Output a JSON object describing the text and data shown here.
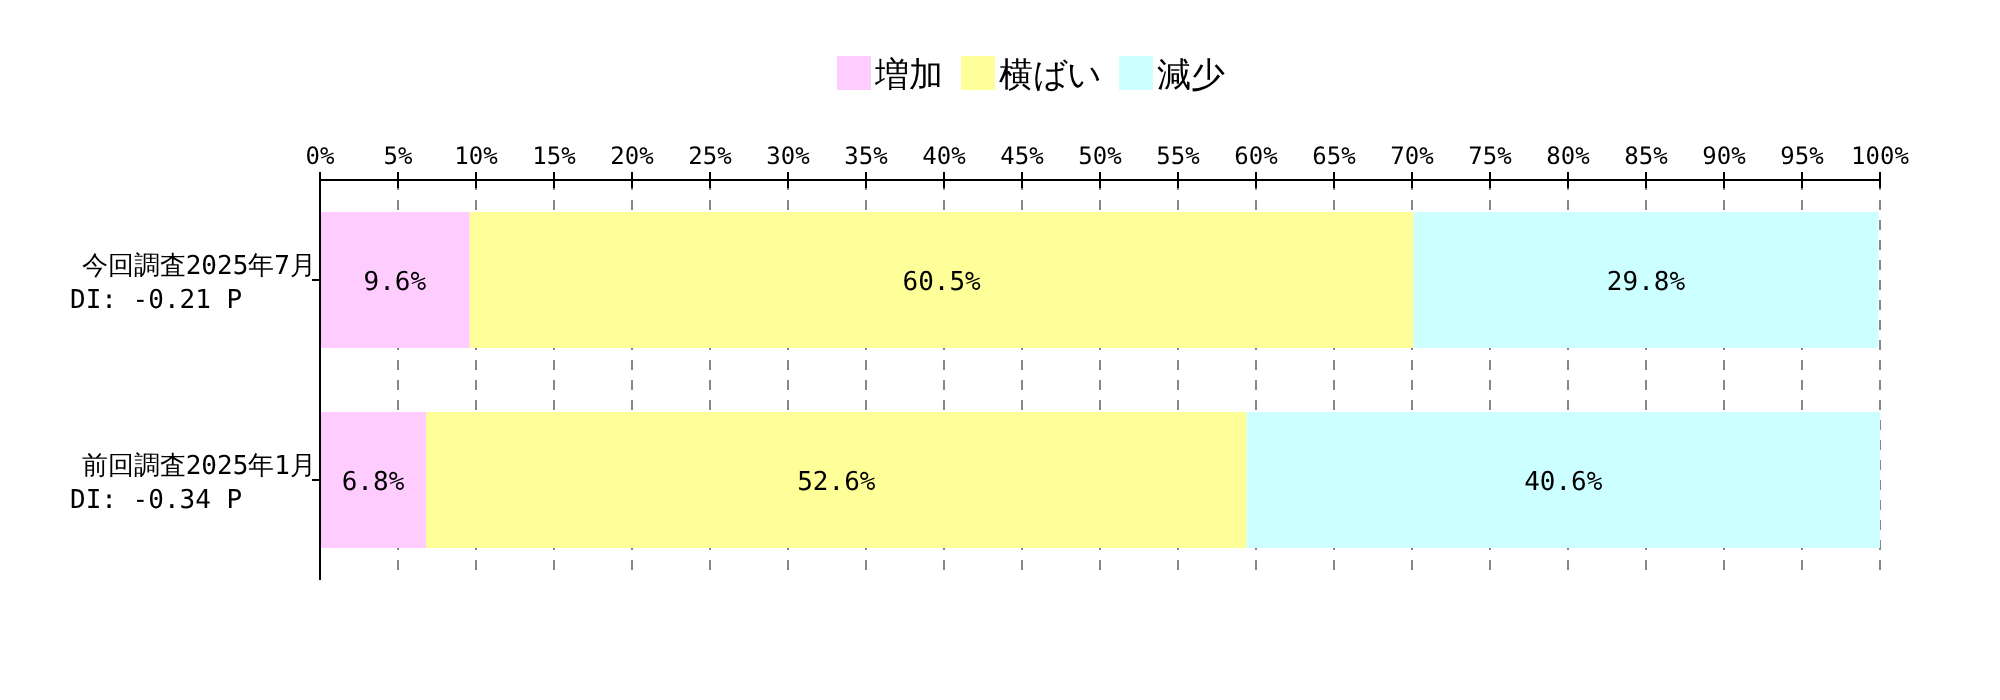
{
  "chart_data": {
    "type": "bar",
    "orientation": "horizontal",
    "stacked": true,
    "categories": [
      "今回調査2025年7月\nDI: -0.21 P",
      "前回調査2025年1月\nDI: -0.34 P"
    ],
    "series": [
      {
        "name": "増加",
        "color": "#ffccff",
        "values": [
          9.6,
          6.8
        ],
        "value_labels": [
          "9.6%",
          "6.8%"
        ]
      },
      {
        "name": "横ばい",
        "color": "#ffff99",
        "values": [
          60.5,
          52.6
        ],
        "value_labels": [
          "60.5%",
          "52.6%"
        ]
      },
      {
        "name": "減少",
        "color": "#ccffff",
        "values": [
          29.8,
          40.6
        ],
        "value_labels": [
          "29.8%",
          "40.6%"
        ]
      }
    ],
    "xlim": [
      0,
      100
    ],
    "xticks": [
      {
        "value": 0,
        "label": "0%"
      },
      {
        "value": 5,
        "label": "5%"
      },
      {
        "value": 10,
        "label": "10%"
      },
      {
        "value": 15,
        "label": "15%"
      },
      {
        "value": 20,
        "label": "20%"
      },
      {
        "value": 25,
        "label": "25%"
      },
      {
        "value": 30,
        "label": "30%"
      },
      {
        "value": 35,
        "label": "35%"
      },
      {
        "value": 40,
        "label": "40%"
      },
      {
        "value": 45,
        "label": "45%"
      },
      {
        "value": 50,
        "label": "50%"
      },
      {
        "value": 55,
        "label": "55%"
      },
      {
        "value": 60,
        "label": "60%"
      },
      {
        "value": 65,
        "label": "65%"
      },
      {
        "value": 70,
        "label": "70%"
      },
      {
        "value": 75,
        "label": "75%"
      },
      {
        "value": 80,
        "label": "80%"
      },
      {
        "value": 85,
        "label": "85%"
      },
      {
        "value": 90,
        "label": "90%"
      },
      {
        "value": 95,
        "label": "95%"
      },
      {
        "value": 100,
        "label": "100%"
      }
    ],
    "grid": "x",
    "legend": "top"
  }
}
